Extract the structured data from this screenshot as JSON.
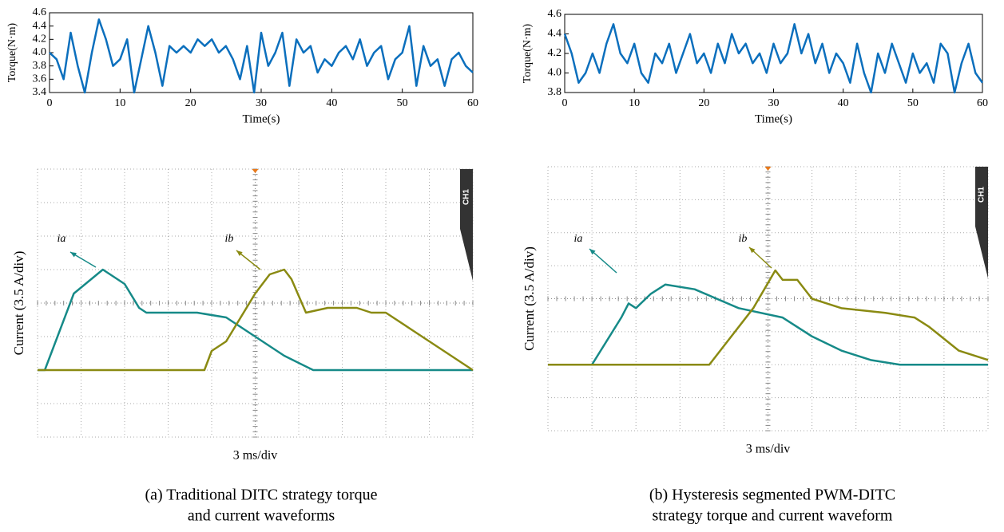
{
  "chart_data": [
    {
      "type": "line",
      "xlabel": "Time(s)",
      "ylabel": "Torque(N·m)",
      "xlim": [
        0,
        60
      ],
      "xticks": [
        0,
        10,
        20,
        30,
        40,
        50,
        60
      ],
      "ylim": [
        3.4,
        4.6
      ],
      "yticks": [
        3.4,
        3.6,
        3.8,
        {
          "value": 4,
          "label": "4.0"
        },
        4.2,
        4.4,
        4.6
      ],
      "series": [
        {
          "color": "#0b6fbd",
          "x": [
            0,
            1,
            2,
            3,
            4,
            5,
            6,
            7,
            8,
            9,
            10,
            11,
            12,
            13,
            14,
            15,
            16,
            17,
            18,
            19,
            20,
            21,
            22,
            23,
            24,
            25,
            26,
            27,
            28,
            29,
            30,
            31,
            32,
            33,
            34,
            35,
            36,
            37,
            38,
            39,
            40,
            41,
            42,
            43,
            44,
            45,
            46,
            47,
            48,
            49,
            50,
            51,
            52,
            53,
            54,
            55,
            56,
            57,
            58,
            59,
            60
          ],
          "values": [
            4.0,
            3.9,
            3.6,
            4.3,
            3.8,
            3.4,
            4.0,
            4.5,
            4.2,
            3.8,
            3.9,
            4.2,
            3.4,
            3.9,
            4.4,
            4.0,
            3.5,
            4.1,
            4.0,
            4.1,
            4.0,
            4.2,
            4.1,
            4.2,
            4.0,
            4.1,
            3.9,
            3.6,
            4.1,
            3.4,
            4.3,
            3.8,
            4.0,
            4.3,
            3.5,
            4.2,
            4.0,
            4.1,
            3.7,
            3.9,
            3.8,
            4.0,
            4.1,
            3.9,
            4.2,
            3.8,
            4.0,
            4.1,
            3.6,
            3.9,
            4.0,
            4.4,
            3.5,
            4.1,
            3.8,
            3.9,
            3.5,
            3.9,
            4.0,
            3.8,
            3.7
          ]
        }
      ]
    },
    {
      "type": "line",
      "xlabel": "Time(s)",
      "ylabel": "Torque(N·m)",
      "xlim": [
        0,
        60
      ],
      "xticks": [
        0,
        10,
        20,
        30,
        40,
        50,
        60
      ],
      "ylim": [
        3.8,
        4.6
      ],
      "yticks": [
        3.8,
        {
          "value": 4,
          "label": "4.0"
        },
        4.2,
        4.4,
        4.6
      ],
      "series": [
        {
          "color": "#0b6fbd",
          "x": [
            0,
            1,
            2,
            3,
            4,
            5,
            6,
            7,
            8,
            9,
            10,
            11,
            12,
            13,
            14,
            15,
            16,
            17,
            18,
            19,
            20,
            21,
            22,
            23,
            24,
            25,
            26,
            27,
            28,
            29,
            30,
            31,
            32,
            33,
            34,
            35,
            36,
            37,
            38,
            39,
            40,
            41,
            42,
            43,
            44,
            45,
            46,
            47,
            48,
            49,
            50,
            51,
            52,
            53,
            54,
            55,
            56,
            57,
            58,
            59,
            60
          ],
          "values": [
            4.4,
            4.2,
            3.9,
            4.0,
            4.2,
            4.0,
            4.3,
            4.5,
            4.2,
            4.1,
            4.3,
            4.0,
            3.9,
            4.2,
            4.1,
            4.3,
            4.0,
            4.2,
            4.4,
            4.1,
            4.2,
            4.0,
            4.3,
            4.1,
            4.4,
            4.2,
            4.3,
            4.1,
            4.2,
            4.0,
            4.3,
            4.1,
            4.2,
            4.5,
            4.2,
            4.4,
            4.1,
            4.3,
            4.0,
            4.2,
            4.1,
            3.9,
            4.3,
            4.0,
            3.8,
            4.2,
            4.0,
            4.3,
            4.1,
            3.9,
            4.2,
            4.0,
            4.1,
            3.9,
            4.3,
            4.2,
            3.8,
            4.1,
            4.3,
            4.0,
            3.9
          ]
        }
      ]
    },
    {
      "type": "scope",
      "xlabel": "3 ms/div",
      "ylabel": "Current (3.5 A/div)",
      "channel_label": "CH1",
      "xlim": [
        0,
        30
      ],
      "ylim": [
        -7,
        21
      ],
      "series": [
        {
          "name": "ia",
          "color": "#168a88",
          "x": [
            0,
            0.5,
            2.5,
            4.5,
            5.5,
            6,
            7,
            7.5,
            11,
            13,
            15,
            17,
            19,
            30
          ],
          "values": [
            0,
            0,
            8,
            10.5,
            9.5,
            9,
            6.5,
            6,
            6,
            5.5,
            3.5,
            1.5,
            0,
            0
          ]
        },
        {
          "name": "ib",
          "color": "#8a8a12",
          "x": [
            0,
            11.5,
            12,
            13,
            15,
            16,
            17,
            17.5,
            18.5,
            20,
            22,
            23,
            24,
            26,
            28,
            30
          ],
          "values": [
            0,
            0,
            2,
            3,
            8,
            10,
            10.5,
            9.5,
            6,
            6.5,
            6.5,
            6,
            6,
            4,
            2,
            0
          ]
        }
      ]
    },
    {
      "type": "scope",
      "xlabel": "3 ms/div",
      "ylabel": "Current (3.5 A/div)",
      "channel_label": "CH1",
      "xlim": [
        0,
        30
      ],
      "ylim": [
        -7,
        21
      ],
      "series": [
        {
          "name": "ia",
          "color": "#168a88",
          "x": [
            0,
            3,
            5,
            5.5,
            6,
            7,
            8,
            10,
            13,
            16,
            18,
            20,
            22,
            24,
            30
          ],
          "values": [
            0,
            0,
            5,
            6.5,
            6,
            7.5,
            8.5,
            8,
            6,
            5,
            3,
            1.5,
            0.5,
            0,
            0
          ]
        },
        {
          "name": "ib",
          "color": "#8a8a12",
          "x": [
            0,
            11,
            14,
            15.5,
            16,
            17,
            18,
            20,
            23,
            25,
            26,
            28,
            30
          ],
          "values": [
            0,
            0,
            6,
            10,
            9,
            9,
            7,
            6,
            5.5,
            5,
            4,
            1.5,
            0.5
          ]
        }
      ]
    }
  ],
  "captions": [
    [
      "(a) Traditional DITC strategy torque",
      "and current waveforms"
    ],
    [
      "(b) Hysteresis segmented PWM-DITC",
      "strategy torque and current waveform"
    ]
  ]
}
